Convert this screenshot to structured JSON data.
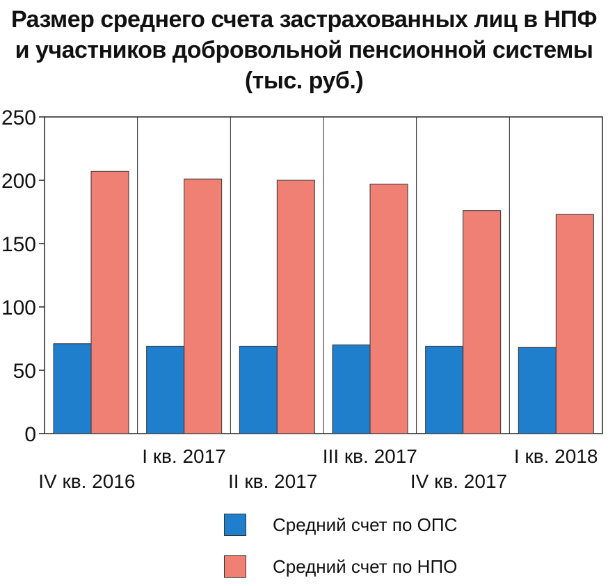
{
  "title_lines": [
    "Размер среднего счета застрахованных лиц в НПФ",
    "и участников добровольной пенсионной системы",
    "(тыс. руб.)"
  ],
  "colors": {
    "ops": "#1f7fcc",
    "npo": "#f08074",
    "grid": "#222222"
  },
  "legend": [
    {
      "label": "Средний счет по ОПС",
      "color": "#1f7fcc"
    },
    {
      "label": "Средний счет по НПО",
      "color": "#f08074"
    }
  ],
  "chart_data": {
    "type": "bar",
    "title": "Размер среднего счета застрахованных лиц в НПФ и участников добровольной пенсионной системы (тыс. руб.)",
    "categories": [
      "IV кв. 2016",
      "I кв. 2017",
      "II кв. 2017",
      "III кв. 2017",
      "IV кв. 2017",
      "I кв. 2018"
    ],
    "series": [
      {
        "name": "Средний счет по ОПС",
        "values": [
          71,
          69,
          69,
          70,
          69,
          68
        ]
      },
      {
        "name": "Средний счет по НПО",
        "values": [
          207,
          201,
          200,
          197,
          176,
          173
        ]
      }
    ],
    "y_ticks": [
      "0",
      "50",
      "100",
      "150",
      "200",
      "250"
    ],
    "ylim": [
      0,
      250
    ],
    "grid": false,
    "legend_position": "bottom"
  }
}
